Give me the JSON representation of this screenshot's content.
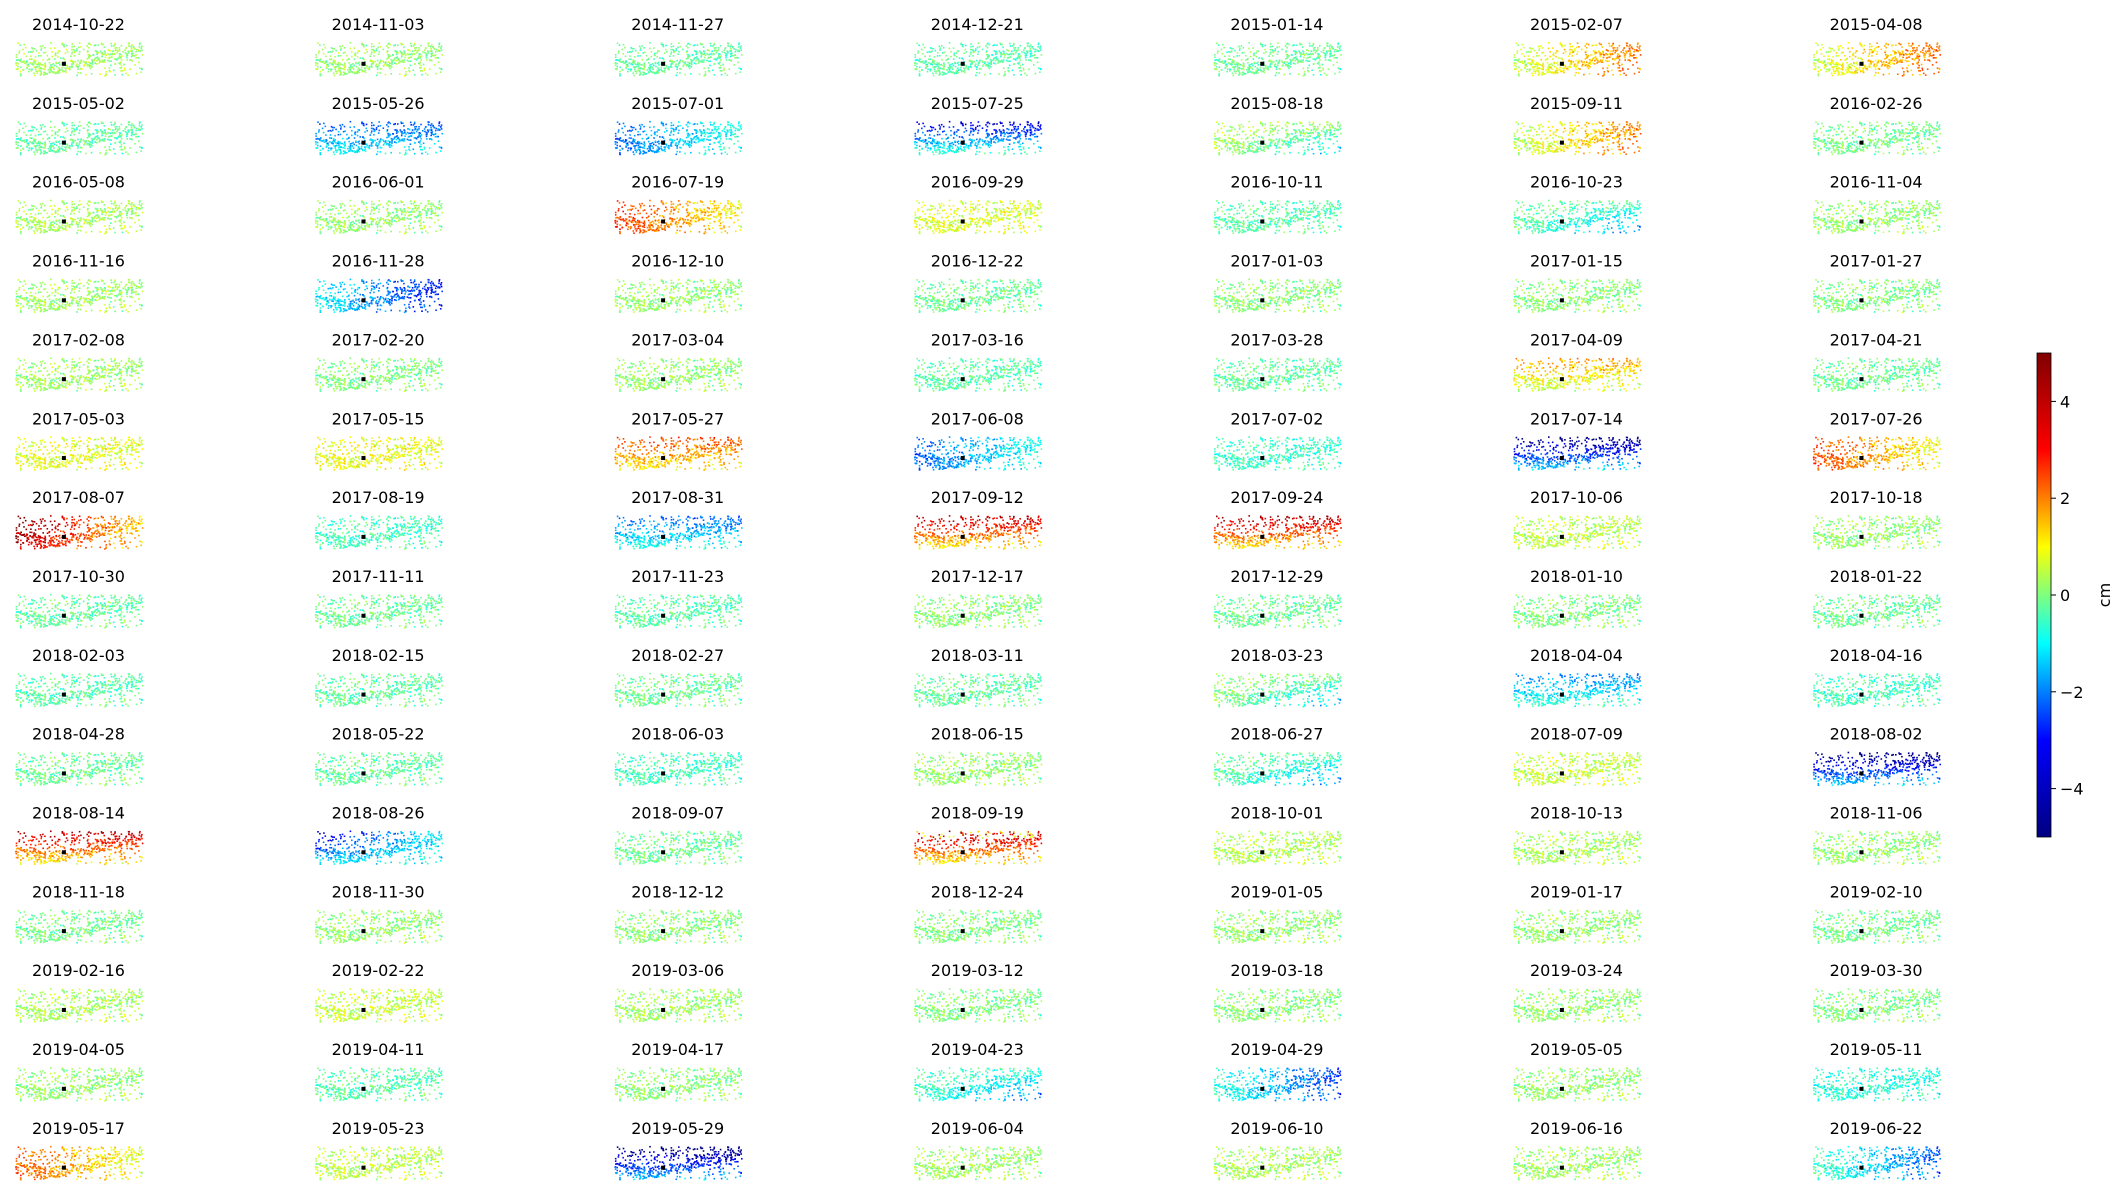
{
  "chart_data": {
    "type": "scatter",
    "layout": "small-multiples",
    "grid_rows": 15,
    "grid_cols": 7,
    "panels": [
      {
        "title": "2014-10-22",
        "pattern": "base",
        "offset": 0.3
      },
      {
        "title": "2014-11-03",
        "pattern": "base",
        "offset": 0.2
      },
      {
        "title": "2014-11-27",
        "pattern": "base",
        "offset": -0.3
      },
      {
        "title": "2014-12-21",
        "pattern": "base",
        "offset": -0.4
      },
      {
        "title": "2015-01-14",
        "pattern": "base",
        "offset": -0.2
      },
      {
        "title": "2015-02-07",
        "pattern": "right_high",
        "offset": 0.5
      },
      {
        "title": "2015-04-08",
        "pattern": "right_high",
        "offset": 0.6
      },
      {
        "title": "2015-05-02",
        "pattern": "base",
        "offset": -0.3
      },
      {
        "title": "2015-05-26",
        "pattern": "top_low",
        "offset": -1.2
      },
      {
        "title": "2015-07-01",
        "pattern": "left_low",
        "offset": -0.8
      },
      {
        "title": "2015-07-25",
        "pattern": "top_low_strong",
        "offset": -0.6
      },
      {
        "title": "2015-08-18",
        "pattern": "bottom_right_low",
        "offset": 0.5
      },
      {
        "title": "2015-09-11",
        "pattern": "right_high",
        "offset": 0.4
      },
      {
        "title": "2016-02-26",
        "pattern": "base",
        "offset": -0.1
      },
      {
        "title": "2016-05-08",
        "pattern": "base",
        "offset": 0.4
      },
      {
        "title": "2016-06-01",
        "pattern": "base",
        "offset": 0.2
      },
      {
        "title": "2016-07-19",
        "pattern": "left_high",
        "offset": 1.2
      },
      {
        "title": "2016-09-29",
        "pattern": "base",
        "offset": 0.9
      },
      {
        "title": "2016-10-11",
        "pattern": "base",
        "offset": -0.4
      },
      {
        "title": "2016-10-23",
        "pattern": "bottom_right_low",
        "offset": -0.2
      },
      {
        "title": "2016-11-04",
        "pattern": "base",
        "offset": 0.2
      },
      {
        "title": "2016-11-16",
        "pattern": "base",
        "offset": 0.3
      },
      {
        "title": "2016-11-28",
        "pattern": "right_low",
        "offset": -1.2
      },
      {
        "title": "2016-12-10",
        "pattern": "base",
        "offset": 0.2
      },
      {
        "title": "2016-12-22",
        "pattern": "base",
        "offset": -0.2
      },
      {
        "title": "2017-01-03",
        "pattern": "base",
        "offset": 0.1
      },
      {
        "title": "2017-01-15",
        "pattern": "base",
        "offset": 0.1
      },
      {
        "title": "2017-01-27",
        "pattern": "base",
        "offset": 0.0
      },
      {
        "title": "2017-02-08",
        "pattern": "base",
        "offset": 0.3
      },
      {
        "title": "2017-02-20",
        "pattern": "base",
        "offset": 0.0
      },
      {
        "title": "2017-03-04",
        "pattern": "base",
        "offset": 0.2
      },
      {
        "title": "2017-03-16",
        "pattern": "base",
        "offset": -0.4
      },
      {
        "title": "2017-03-28",
        "pattern": "base",
        "offset": -0.3
      },
      {
        "title": "2017-04-09",
        "pattern": "top_high",
        "offset": 0.5
      },
      {
        "title": "2017-04-21",
        "pattern": "base",
        "offset": -0.2
      },
      {
        "title": "2017-05-03",
        "pattern": "base",
        "offset": 1.0
      },
      {
        "title": "2017-05-15",
        "pattern": "base",
        "offset": 1.1
      },
      {
        "title": "2017-05-27",
        "pattern": "top_high",
        "offset": 1.3
      },
      {
        "title": "2017-06-08",
        "pattern": "left_low",
        "offset": -0.9
      },
      {
        "title": "2017-07-02",
        "pattern": "base",
        "offset": -0.7
      },
      {
        "title": "2017-07-14",
        "pattern": "top_low_strong",
        "offset": -1.6
      },
      {
        "title": "2017-07-26",
        "pattern": "left_high",
        "offset": 1.1
      },
      {
        "title": "2017-08-07",
        "pattern": "left_high_strong",
        "offset": 1.8
      },
      {
        "title": "2017-08-19",
        "pattern": "base",
        "offset": -0.6
      },
      {
        "title": "2017-08-31",
        "pattern": "top_low",
        "offset": -1.0
      },
      {
        "title": "2017-09-12",
        "pattern": "top_high_strong",
        "offset": 1.2
      },
      {
        "title": "2017-09-24",
        "pattern": "top_high_strong",
        "offset": 1.3
      },
      {
        "title": "2017-10-06",
        "pattern": "base",
        "offset": 0.6
      },
      {
        "title": "2017-10-18",
        "pattern": "base",
        "offset": 0.2
      },
      {
        "title": "2017-10-30",
        "pattern": "base",
        "offset": -0.3
      },
      {
        "title": "2017-11-11",
        "pattern": "base",
        "offset": -0.2
      },
      {
        "title": "2017-11-23",
        "pattern": "base",
        "offset": -0.4
      },
      {
        "title": "2017-12-17",
        "pattern": "base",
        "offset": 0.1
      },
      {
        "title": "2017-12-29",
        "pattern": "base",
        "offset": -0.2
      },
      {
        "title": "2018-01-10",
        "pattern": "base",
        "offset": 0.0
      },
      {
        "title": "2018-01-22",
        "pattern": "base",
        "offset": -0.2
      },
      {
        "title": "2018-02-03",
        "pattern": "base",
        "offset": -0.4
      },
      {
        "title": "2018-02-15",
        "pattern": "base",
        "offset": -0.3
      },
      {
        "title": "2018-02-27",
        "pattern": "base",
        "offset": -0.2
      },
      {
        "title": "2018-03-11",
        "pattern": "base",
        "offset": -0.3
      },
      {
        "title": "2018-03-23",
        "pattern": "bottom_right_low",
        "offset": 0.2
      },
      {
        "title": "2018-04-04",
        "pattern": "top_low",
        "offset": -0.7
      },
      {
        "title": "2018-04-16",
        "pattern": "base",
        "offset": -0.6
      },
      {
        "title": "2018-04-28",
        "pattern": "base",
        "offset": -0.2
      },
      {
        "title": "2018-05-22",
        "pattern": "base",
        "offset": -0.3
      },
      {
        "title": "2018-06-03",
        "pattern": "base",
        "offset": -0.6
      },
      {
        "title": "2018-06-15",
        "pattern": "base",
        "offset": 0.2
      },
      {
        "title": "2018-06-27",
        "pattern": "bottom_right_low",
        "offset": -0.2
      },
      {
        "title": "2018-07-09",
        "pattern": "base",
        "offset": 0.7
      },
      {
        "title": "2018-08-02",
        "pattern": "top_low_strong",
        "offset": -1.7
      },
      {
        "title": "2018-08-14",
        "pattern": "top_high_strong",
        "offset": 1.2
      },
      {
        "title": "2018-08-26",
        "pattern": "left_low_strong",
        "offset": -1.3
      },
      {
        "title": "2018-09-07",
        "pattern": "base",
        "offset": -0.2
      },
      {
        "title": "2018-09-19",
        "pattern": "top_high_mixed",
        "offset": 1.2
      },
      {
        "title": "2018-10-01",
        "pattern": "base",
        "offset": 0.5
      },
      {
        "title": "2018-10-13",
        "pattern": "base",
        "offset": 0.4
      },
      {
        "title": "2018-11-06",
        "pattern": "base",
        "offset": 0.2
      },
      {
        "title": "2018-11-18",
        "pattern": "base",
        "offset": -0.1
      },
      {
        "title": "2018-11-30",
        "pattern": "base",
        "offset": 0.2
      },
      {
        "title": "2018-12-12",
        "pattern": "base",
        "offset": 0.1
      },
      {
        "title": "2018-12-24",
        "pattern": "base",
        "offset": 0.0
      },
      {
        "title": "2019-01-05",
        "pattern": "base",
        "offset": 0.2
      },
      {
        "title": "2019-01-17",
        "pattern": "base",
        "offset": 0.2
      },
      {
        "title": "2019-02-10",
        "pattern": "base",
        "offset": -0.1
      },
      {
        "title": "2019-02-16",
        "pattern": "base",
        "offset": 0.4
      },
      {
        "title": "2019-02-22",
        "pattern": "base",
        "offset": 0.7
      },
      {
        "title": "2019-03-06",
        "pattern": "base",
        "offset": 0.3
      },
      {
        "title": "2019-03-12",
        "pattern": "base",
        "offset": 0.0
      },
      {
        "title": "2019-03-18",
        "pattern": "base",
        "offset": 0.1
      },
      {
        "title": "2019-03-24",
        "pattern": "base",
        "offset": 0.2
      },
      {
        "title": "2019-03-30",
        "pattern": "base",
        "offset": 0.0
      },
      {
        "title": "2019-04-05",
        "pattern": "base",
        "offset": 0.2
      },
      {
        "title": "2019-04-11",
        "pattern": "base",
        "offset": -0.4
      },
      {
        "title": "2019-04-17",
        "pattern": "base",
        "offset": 0.1
      },
      {
        "title": "2019-04-23",
        "pattern": "bottom_right_low",
        "offset": -0.5
      },
      {
        "title": "2019-04-29",
        "pattern": "right_low",
        "offset": -0.8
      },
      {
        "title": "2019-05-05",
        "pattern": "base",
        "offset": 0.2
      },
      {
        "title": "2019-05-11",
        "pattern": "base",
        "offset": -0.9
      },
      {
        "title": "2019-05-17",
        "pattern": "left_high",
        "offset": 0.9
      },
      {
        "title": "2019-05-23",
        "pattern": "base",
        "offset": 0.6
      },
      {
        "title": "2019-05-29",
        "pattern": "top_low_strong",
        "offset": -1.8
      },
      {
        "title": "2019-06-04",
        "pattern": "base",
        "offset": 0.3
      },
      {
        "title": "2019-06-10",
        "pattern": "base",
        "offset": 0.4
      },
      {
        "title": "2019-06-16",
        "pattern": "base",
        "offset": 0.3
      },
      {
        "title": "2019-06-22",
        "pattern": "right_low",
        "offset": -0.5
      }
    ],
    "colorbar": {
      "colormap": "jet",
      "vmin": -5,
      "vmax": 5,
      "ticks": [
        "−4",
        "−2",
        "0",
        "2",
        "4"
      ],
      "tick_values": [
        -4,
        -2,
        0,
        2,
        4
      ],
      "label": "cm"
    },
    "colormap_stops": [
      "#000080",
      "#0000ff",
      "#00ffff",
      "#ffff00",
      "#ff0000",
      "#800000"
    ]
  }
}
